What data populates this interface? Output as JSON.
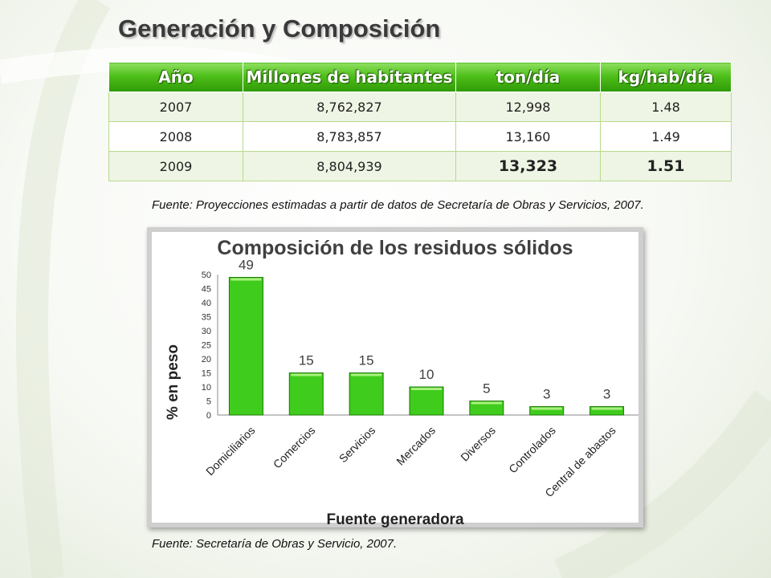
{
  "slide_title": "Generación y Composición",
  "table": {
    "headers": [
      "Año",
      "Millones de habitantes",
      "ton/día",
      "kg/hab/día"
    ],
    "rows": [
      [
        "2007",
        "8,762,827",
        "12,998",
        "1.48"
      ],
      [
        "2008",
        "8,783,857",
        "13,160",
        "1.49"
      ],
      [
        "2009",
        "8,804,939",
        "13,323",
        "1.51"
      ]
    ]
  },
  "table_source": "Fuente: Proyecciones estimadas a partir de datos de Secretaría de Obras y Servicios, 2007.",
  "chart_data": {
    "type": "bar",
    "title": "Composición de los residuos sólidos",
    "xlabel": "Fuente generadora",
    "ylabel": "% en peso",
    "categories": [
      "Domiciliarios",
      "Comercios",
      "Servicios",
      "Mercados",
      "Diversos",
      "Controlados",
      "Central de abastos"
    ],
    "values": [
      49,
      15,
      15,
      10,
      5,
      3,
      3
    ],
    "ylim": [
      0,
      50
    ],
    "yticks": [
      0,
      5,
      10,
      15,
      20,
      25,
      30,
      35,
      40,
      45,
      50
    ],
    "bar_color": "#3fcc1c",
    "grid": false,
    "legend": "none"
  },
  "chart_source": "Fuente: Secretaría de Obras y Servicio, 2007."
}
